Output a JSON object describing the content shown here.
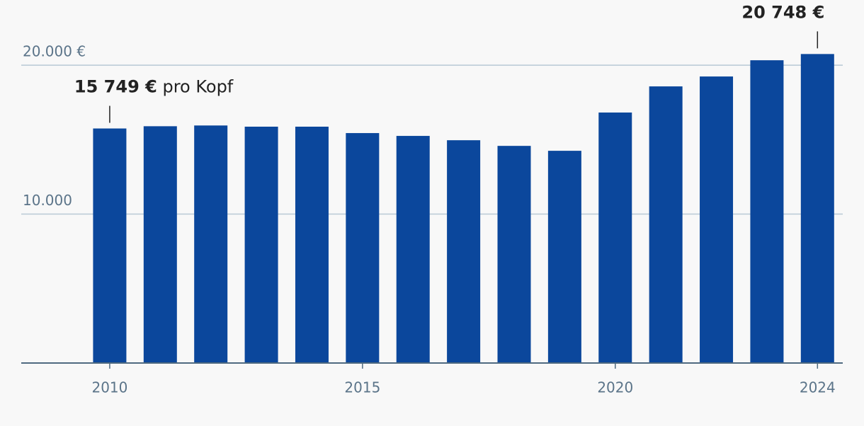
{
  "chart_data": {
    "type": "bar",
    "x": [
      2010,
      2011,
      2012,
      2013,
      2014,
      2015,
      2016,
      2017,
      2018,
      2019,
      2020,
      2021,
      2022,
      2023,
      2024
    ],
    "values": [
      15749,
      15900,
      15950,
      15870,
      15870,
      15440,
      15250,
      14960,
      14580,
      14250,
      16820,
      18575,
      19240,
      20330,
      20748
    ],
    "value_labels": [
      "15 749 €",
      null,
      null,
      null,
      null,
      null,
      null,
      null,
      null,
      null,
      null,
      null,
      null,
      null,
      "20 748 €"
    ],
    "annotation": "pro Kopf",
    "color": "#0b479c",
    "xlim": [
      2008.25,
      2024.5
    ],
    "xticks": [
      2010,
      2015,
      2020,
      2024
    ],
    "ylim": [
      0,
      22000
    ],
    "yticks": [
      {
        "value": 10000,
        "label": "10.000"
      },
      {
        "value": 20000,
        "label": "20.000 €"
      }
    ],
    "grid": true
  }
}
